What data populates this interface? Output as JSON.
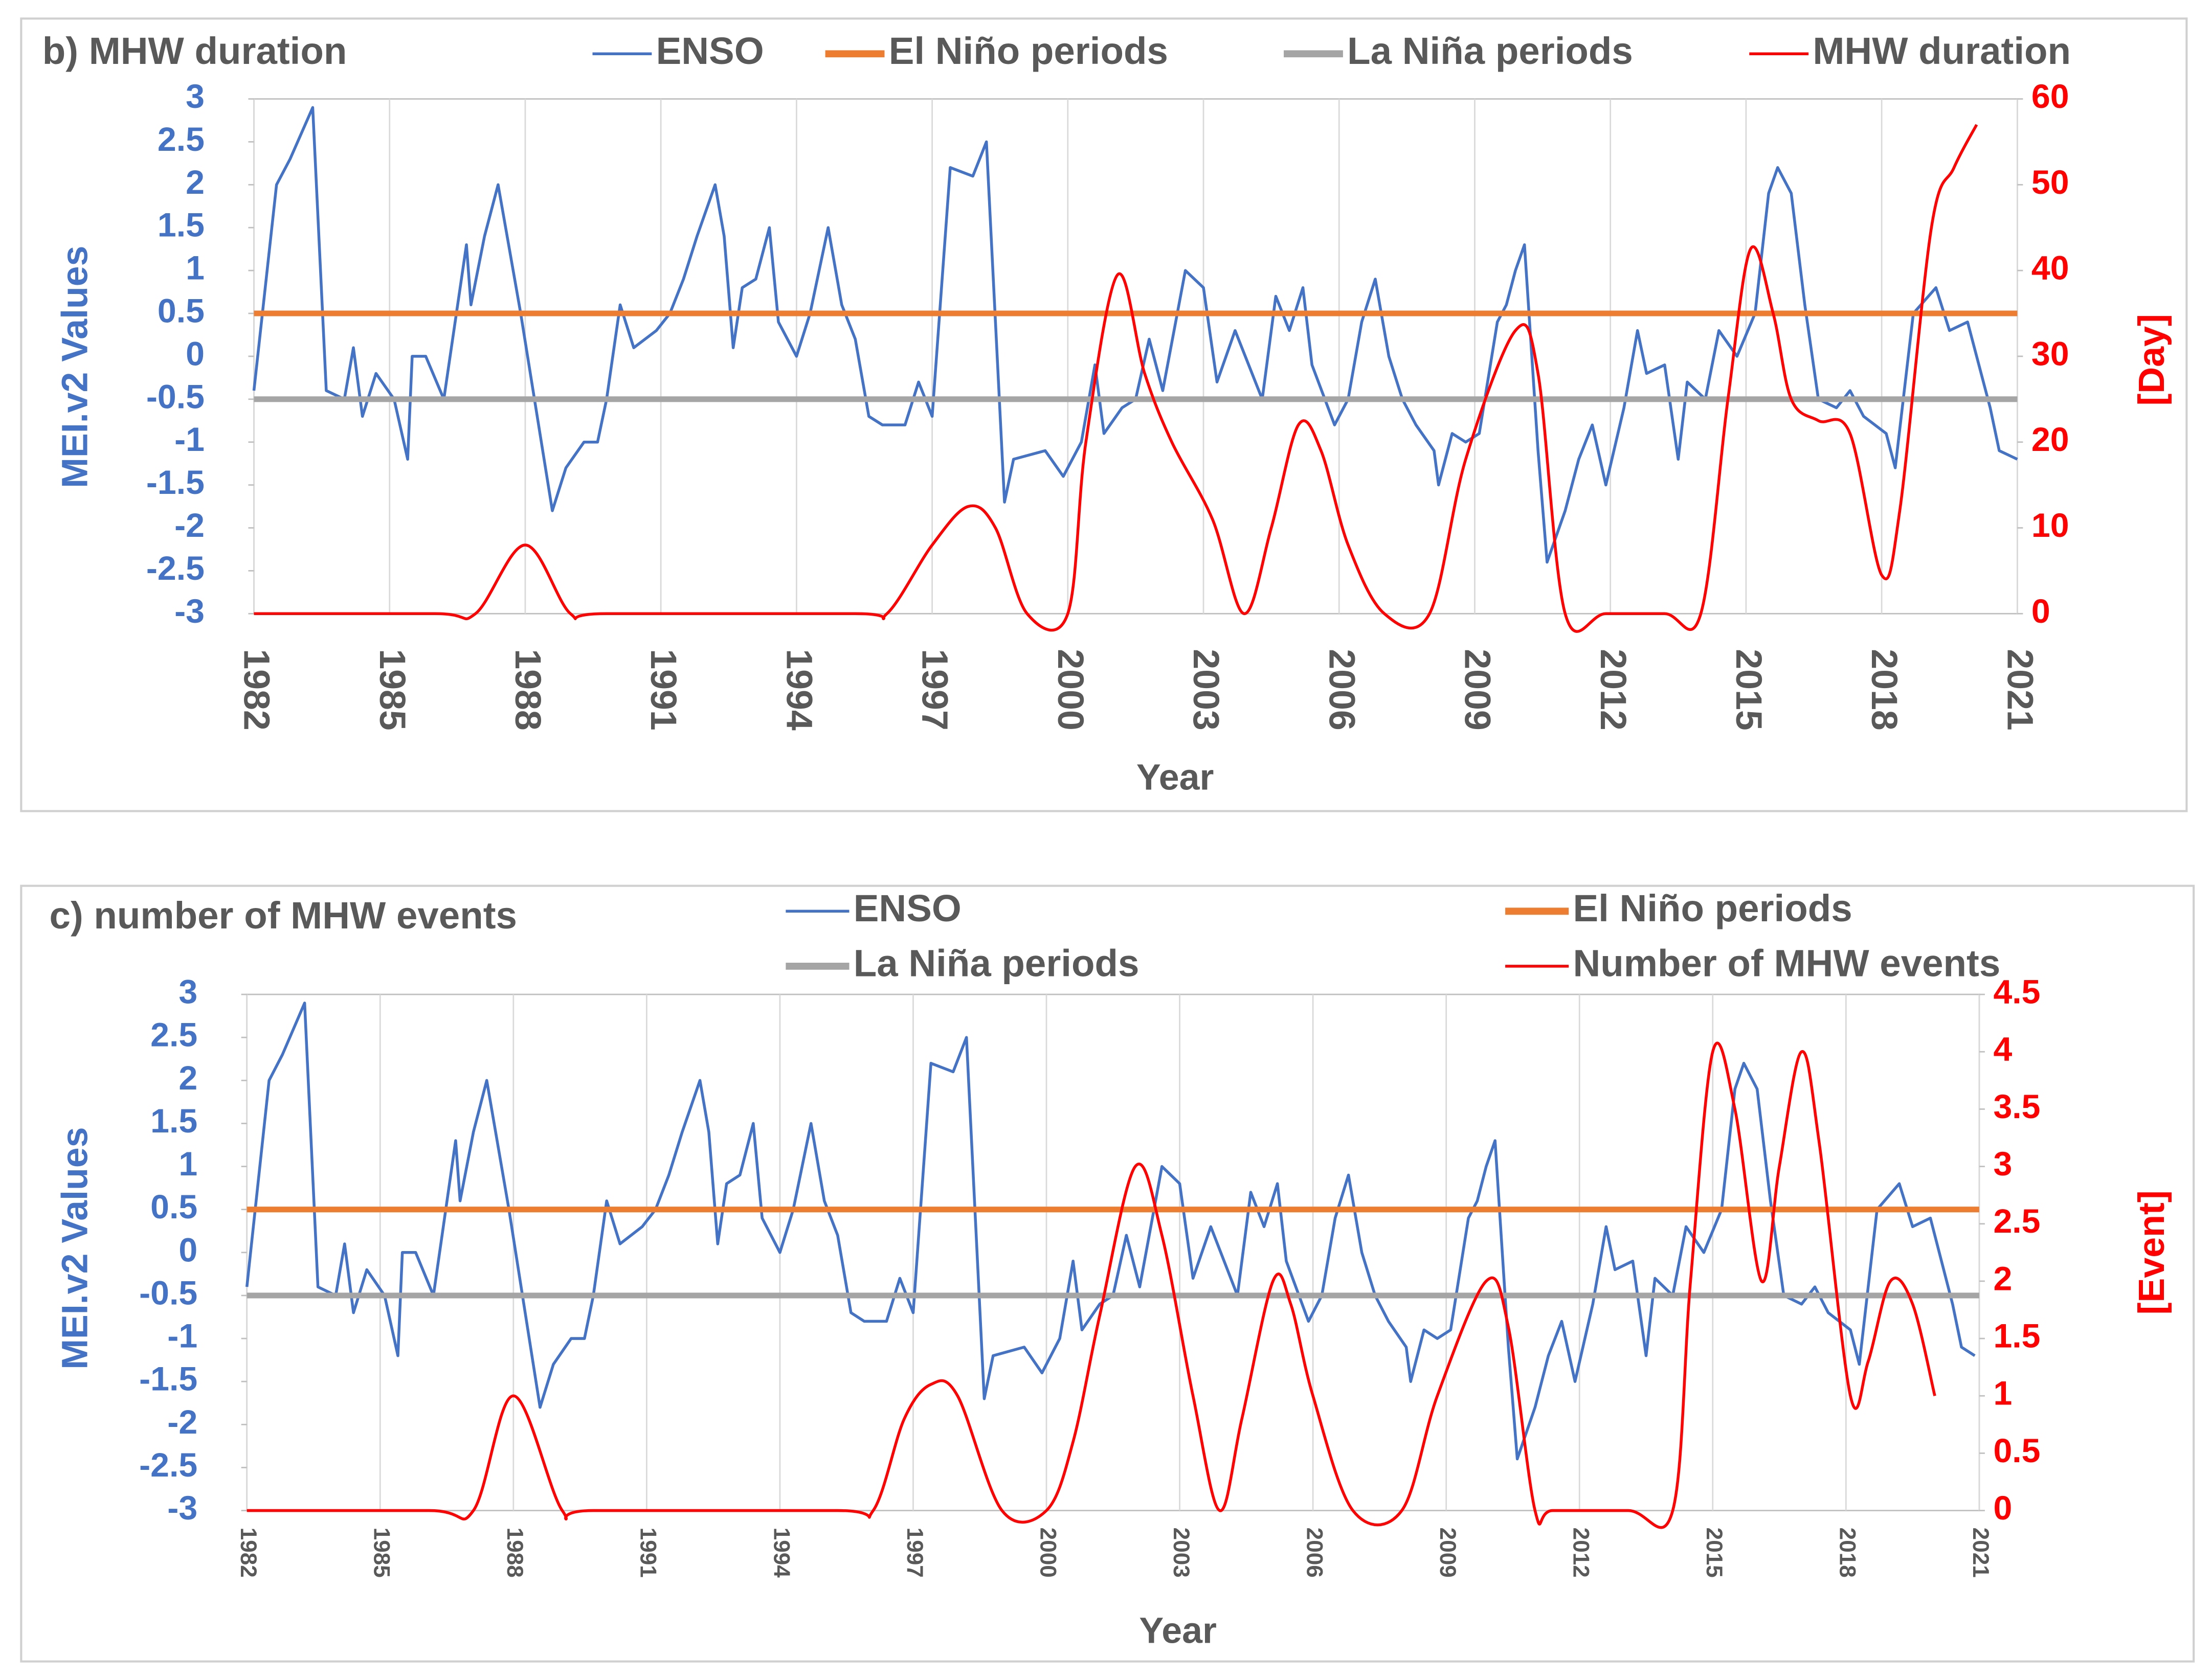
{
  "chart_data": [
    {
      "type": "line",
      "title": "b) MHW duration",
      "x_label": "Year",
      "y_label": "MEI.v2 Values",
      "y2_label": "[Day]",
      "xlim": [
        1982,
        2021
      ],
      "xticks": [
        1982,
        1985,
        1988,
        1991,
        1994,
        1997,
        2000,
        2003,
        2006,
        2009,
        2012,
        2015,
        2018,
        2021
      ],
      "ylim": [
        -3,
        3
      ],
      "yticks": [
        -3,
        -2.5,
        -2,
        -1.5,
        -1,
        -0.5,
        0,
        0.5,
        1,
        1.5,
        2,
        2.5,
        3
      ],
      "y2lim": [
        0,
        60
      ],
      "y2ticks": [
        0,
        10,
        20,
        30,
        40,
        50,
        60
      ],
      "grid": "x",
      "series": [
        {
          "name": "ENSO",
          "color": "#4472c4",
          "x": [
            1982.0,
            1982.5,
            1982.8,
            1983.3,
            1983.6,
            1984.0,
            1984.2,
            1984.4,
            1984.7,
            1985.1,
            1985.4,
            1985.5,
            1985.8,
            1986.2,
            1986.7,
            1986.8,
            1987.1,
            1987.4,
            1987.9,
            1988.6,
            1988.9,
            1989.3,
            1989.6,
            1989.8,
            1990.1,
            1990.4,
            1990.9,
            1991.2,
            1991.5,
            1991.8,
            1992.2,
            1992.4,
            1992.6,
            1992.8,
            1993.1,
            1993.4,
            1993.6,
            1994.0,
            1994.3,
            1994.7,
            1995.0,
            1995.3,
            1995.6,
            1995.9,
            1996.4,
            1996.7,
            1997.0,
            1997.4,
            1997.9,
            1998.2,
            1998.6,
            1998.8,
            1999.5,
            1999.9,
            2000.3,
            2000.6,
            2000.8,
            2001.2,
            2001.5,
            2001.8,
            2002.1,
            2002.6,
            2003.0,
            2003.3,
            2003.7,
            2004.0,
            2004.3,
            2004.6,
            2004.9,
            2005.2,
            2005.4,
            2005.9,
            2006.2,
            2006.5,
            2006.8,
            2007.1,
            2007.4,
            2007.7,
            2008.1,
            2008.2,
            2008.5,
            2008.8,
            2009.1,
            2009.5,
            2009.7,
            2009.9,
            2010.1,
            2010.4,
            2010.6,
            2011.0,
            2011.3,
            2011.6,
            2011.9,
            2012.3,
            2012.6,
            2012.8,
            2013.2,
            2013.5,
            2013.7,
            2014.1,
            2014.4,
            2014.8,
            2015.2,
            2015.5,
            2015.7,
            2016.0,
            2016.3,
            2016.6,
            2017.0,
            2017.3,
            2017.6,
            2018.1,
            2018.3,
            2018.7,
            2019.2,
            2019.5,
            2019.9,
            2020.4,
            2020.6,
            2021.0
          ],
          "values": [
            -0.4,
            2.0,
            2.3,
            2.9,
            -0.4,
            -0.5,
            0.1,
            -0.7,
            -0.2,
            -0.5,
            -1.2,
            0.0,
            0.0,
            -0.5,
            1.3,
            0.6,
            1.4,
            2.0,
            0.5,
            -1.8,
            -1.3,
            -1.0,
            -1.0,
            -0.5,
            0.6,
            0.1,
            0.3,
            0.5,
            0.9,
            1.4,
            2.0,
            1.4,
            0.1,
            0.8,
            0.9,
            1.5,
            0.4,
            0.0,
            0.5,
            1.5,
            0.6,
            0.2,
            -0.7,
            -0.8,
            -0.8,
            -0.3,
            -0.7,
            2.2,
            2.1,
            2.5,
            -1.7,
            -1.2,
            -1.1,
            -1.4,
            -1.0,
            -0.1,
            -0.9,
            -0.6,
            -0.5,
            0.2,
            -0.4,
            1.0,
            0.8,
            -0.3,
            0.3,
            -0.1,
            -0.5,
            0.7,
            0.3,
            0.8,
            -0.1,
            -0.8,
            -0.5,
            0.4,
            0.9,
            0.0,
            -0.5,
            -0.8,
            -1.1,
            -1.5,
            -0.9,
            -1.0,
            -0.9,
            0.4,
            0.6,
            1.0,
            1.3,
            -1.1,
            -2.4,
            -1.8,
            -1.2,
            -0.8,
            -1.5,
            -0.6,
            0.3,
            -0.2,
            -0.1,
            -1.2,
            -0.3,
            -0.5,
            0.3,
            0.0,
            0.5,
            1.9,
            2.2,
            1.9,
            0.6,
            -0.5,
            -0.6,
            -0.4,
            -0.7,
            -0.9,
            -1.3,
            0.5,
            0.8,
            0.3,
            0.4,
            -0.6,
            -1.1,
            -1.2
          ]
        },
        {
          "name": "El Niño periods",
          "color": "#ed7d31",
          "x": [
            1982,
            2021
          ],
          "values": [
            0.5,
            0.5
          ]
        },
        {
          "name": "La Niña periods",
          "color": "#a5a5a5",
          "x": [
            1982,
            2021
          ],
          "values": [
            -0.5,
            -0.5
          ]
        },
        {
          "name": "MHW duration",
          "color": "#ff0000",
          "axis": "y2",
          "x": [
            1982.0,
            1986.0,
            1986.9,
            1988.0,
            1989.0,
            1989.8,
            1995.3,
            1996.0,
            1997.0,
            1997.8,
            1998.4,
            1999.1,
            2000.0,
            2000.4,
            2001.1,
            2001.7,
            2002.3,
            2003.2,
            2003.9,
            2004.5,
            2005.1,
            2005.6,
            2006.2,
            2007.0,
            2008.0,
            2008.8,
            2009.9,
            2010.4,
            2011.0,
            2011.9,
            2013.2,
            2014.0,
            2014.6,
            2015.1,
            2015.6,
            2016.0,
            2016.6,
            2017.3,
            2018.0,
            2018.4,
            2019.1,
            2019.6,
            2020.1
          ],
          "values": [
            0,
            0,
            0,
            8,
            0,
            0,
            0,
            0,
            8,
            12.5,
            10,
            0,
            0,
            20,
            39.5,
            28,
            20,
            11,
            0,
            10,
            22,
            19,
            8,
            0,
            0,
            18,
            33,
            28,
            0,
            0,
            0,
            0,
            25,
            42.5,
            35,
            25,
            22.5,
            21,
            4.5,
            12,
            45,
            52,
            57
          ]
        }
      ]
    },
    {
      "type": "line",
      "title": "c) number of MHW events",
      "x_label": "Year",
      "y_label": "MEI.v2 Values",
      "y2_label": "[Event]",
      "xlim": [
        1982,
        2021
      ],
      "xticks": [
        1982,
        1985,
        1988,
        1991,
        1994,
        1997,
        2000,
        2003,
        2006,
        2009,
        2012,
        2015,
        2018,
        2021
      ],
      "ylim": [
        -3,
        3
      ],
      "yticks": [
        -3,
        -2.5,
        -2,
        -1.5,
        -1,
        -0.5,
        0,
        0.5,
        1,
        1.5,
        2,
        2.5,
        3
      ],
      "y2lim": [
        0,
        4.5
      ],
      "y2ticks": [
        0,
        0.5,
        1,
        1.5,
        2,
        2.5,
        3,
        3.5,
        4,
        4.5
      ],
      "grid": "x",
      "series": [
        {
          "name": "ENSO",
          "color": "#4472c4",
          "x": [
            1982.0,
            1982.5,
            1982.8,
            1983.3,
            1983.6,
            1984.0,
            1984.2,
            1984.4,
            1984.7,
            1985.1,
            1985.4,
            1985.5,
            1985.8,
            1986.2,
            1986.7,
            1986.8,
            1987.1,
            1987.4,
            1987.9,
            1988.6,
            1988.9,
            1989.3,
            1989.6,
            1989.8,
            1990.1,
            1990.4,
            1990.9,
            1991.2,
            1991.5,
            1991.8,
            1992.2,
            1992.4,
            1992.6,
            1992.8,
            1993.1,
            1993.4,
            1993.6,
            1994.0,
            1994.3,
            1994.7,
            1995.0,
            1995.3,
            1995.6,
            1995.9,
            1996.4,
            1996.7,
            1997.0,
            1997.4,
            1997.9,
            1998.2,
            1998.6,
            1998.8,
            1999.5,
            1999.9,
            2000.3,
            2000.6,
            2000.8,
            2001.2,
            2001.5,
            2001.8,
            2002.1,
            2002.6,
            2003.0,
            2003.3,
            2003.7,
            2004.0,
            2004.3,
            2004.6,
            2004.9,
            2005.2,
            2005.4,
            2005.9,
            2006.2,
            2006.5,
            2006.8,
            2007.1,
            2007.4,
            2007.7,
            2008.1,
            2008.2,
            2008.5,
            2008.8,
            2009.1,
            2009.5,
            2009.7,
            2009.9,
            2010.1,
            2010.4,
            2010.6,
            2011.0,
            2011.3,
            2011.6,
            2011.9,
            2012.3,
            2012.6,
            2012.8,
            2013.2,
            2013.5,
            2013.7,
            2014.1,
            2014.4,
            2014.8,
            2015.2,
            2015.5,
            2015.7,
            2016.0,
            2016.3,
            2016.6,
            2017.0,
            2017.3,
            2017.6,
            2018.1,
            2018.3,
            2018.7,
            2019.2,
            2019.5,
            2019.9,
            2020.4,
            2020.6,
            2020.9
          ],
          "values": [
            -0.4,
            2.0,
            2.3,
            2.9,
            -0.4,
            -0.5,
            0.1,
            -0.7,
            -0.2,
            -0.5,
            -1.2,
            0.0,
            0.0,
            -0.5,
            1.3,
            0.6,
            1.4,
            2.0,
            0.5,
            -1.8,
            -1.3,
            -1.0,
            -1.0,
            -0.5,
            0.6,
            0.1,
            0.3,
            0.5,
            0.9,
            1.4,
            2.0,
            1.4,
            0.1,
            0.8,
            0.9,
            1.5,
            0.4,
            0.0,
            0.5,
            1.5,
            0.6,
            0.2,
            -0.7,
            -0.8,
            -0.8,
            -0.3,
            -0.7,
            2.2,
            2.1,
            2.5,
            -1.7,
            -1.2,
            -1.1,
            -1.4,
            -1.0,
            -0.1,
            -0.9,
            -0.6,
            -0.5,
            0.2,
            -0.4,
            1.0,
            0.8,
            -0.3,
            0.3,
            -0.1,
            -0.5,
            0.7,
            0.3,
            0.8,
            -0.1,
            -0.8,
            -0.5,
            0.4,
            0.9,
            0.0,
            -0.5,
            -0.8,
            -1.1,
            -1.5,
            -0.9,
            -1.0,
            -0.9,
            0.4,
            0.6,
            1.0,
            1.3,
            -1.1,
            -2.4,
            -1.8,
            -1.2,
            -0.8,
            -1.5,
            -0.6,
            0.3,
            -0.2,
            -0.1,
            -1.2,
            -0.3,
            -0.5,
            0.3,
            0.0,
            0.5,
            1.9,
            2.2,
            1.9,
            0.6,
            -0.5,
            -0.6,
            -0.4,
            -0.7,
            -0.9,
            -1.3,
            0.5,
            0.8,
            0.3,
            0.4,
            -0.6,
            -1.1,
            -1.2
          ]
        },
        {
          "name": "El Niño periods",
          "color": "#ed7d31",
          "x": [
            1982,
            2021
          ],
          "values": [
            0.5,
            0.5
          ]
        },
        {
          "name": "La Niña periods",
          "color": "#a5a5a5",
          "x": [
            1982,
            2021
          ],
          "values": [
            -0.5,
            -0.5
          ]
        },
        {
          "name": "Number of MHW events",
          "color": "#ff0000",
          "axis": "y2",
          "x": [
            1982.0,
            1986.1,
            1987.1,
            1988.0,
            1989.1,
            1989.8,
            1995.3,
            1996.1,
            1996.8,
            1997.4,
            1998.0,
            1999.0,
            2000.0,
            2000.6,
            2001.2,
            2002.0,
            2002.6,
            2003.3,
            2003.9,
            2004.4,
            2005.1,
            2005.5,
            2006.0,
            2006.9,
            2008.0,
            2008.8,
            2009.9,
            2010.4,
            2011.0,
            2011.4,
            2013.1,
            2014.1,
            2014.5,
            2015.0,
            2015.5,
            2016.1,
            2016.5,
            2017.0,
            2017.4,
            2018.1,
            2018.5,
            2019.0,
            2019.5,
            2020.0
          ],
          "values": [
            0,
            0,
            0,
            1,
            0,
            0,
            0,
            0,
            0.8,
            1.1,
            1.0,
            0,
            0,
            0.6,
            1.7,
            3.0,
            2.4,
            1.0,
            0,
            0.8,
            2.0,
            1.8,
            1.0,
            0,
            0,
            1.0,
            2.0,
            1.6,
            0,
            0,
            0,
            0,
            2.0,
            4.0,
            3.5,
            2.0,
            3.0,
            4.0,
            3.2,
            1.0,
            1.3,
            2.0,
            1.8,
            1.0
          ]
        }
      ]
    }
  ]
}
